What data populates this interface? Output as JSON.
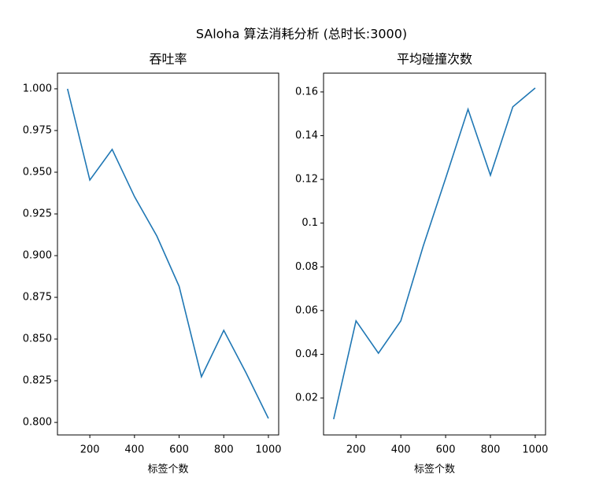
{
  "title": "SAloha 算法消耗分析 (总时长:3000)",
  "chart_data": [
    {
      "type": "line",
      "title": "吞吐率",
      "xlabel": "标签个数",
      "x": [
        100,
        200,
        300,
        400,
        500,
        600,
        700,
        800,
        900,
        1000
      ],
      "series": [
        {
          "color": "#1f77b4",
          "values": [
            1.0,
            0.9453,
            0.9637,
            0.9354,
            0.9118,
            0.8816,
            0.8274,
            0.8552,
            0.8297,
            0.8024
          ]
        }
      ],
      "xlim": [
        55,
        1046
      ],
      "xticks": [
        200,
        400,
        600,
        800,
        1000
      ],
      "ylim": [
        0.7925,
        1.0094
      ],
      "yticks": [
        {
          "value": 0.8,
          "label": "0.800"
        },
        0.825,
        {
          "value": 0.85,
          "label": "0.850"
        },
        0.875,
        {
          "value": 0.9,
          "label": "0.900"
        },
        0.925,
        {
          "value": 0.95,
          "label": "0.950"
        },
        0.975,
        {
          "value": 1.0,
          "label": "1.000"
        }
      ]
    },
    {
      "type": "line",
      "title": "平均碰撞次数",
      "xlabel": "标签个数",
      "x": [
        100,
        200,
        300,
        400,
        500,
        600,
        700,
        800,
        900,
        1000
      ],
      "series": [
        {
          "color": "#1f77b4",
          "values": [
            0.0103,
            0.0553,
            0.0405,
            0.0553,
            0.0895,
            0.1205,
            0.1521,
            0.1219,
            0.1532,
            0.1618
          ]
        }
      ],
      "xlim": [
        55,
        1046
      ],
      "xticks": [
        200,
        400,
        600,
        800,
        1000
      ],
      "ylim": [
        0.0031,
        0.1686
      ],
      "yticks": [
        0.02,
        0.04,
        0.06,
        0.08,
        0.1,
        0.12,
        0.14,
        0.16
      ]
    }
  ]
}
